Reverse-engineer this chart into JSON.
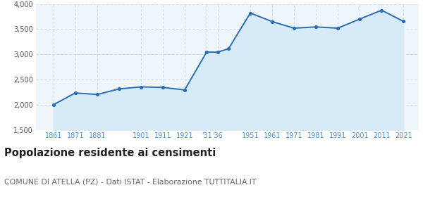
{
  "x_positions": [
    1861,
    1871,
    1881,
    1891,
    1901,
    1911,
    1921,
    1931,
    1936,
    1941,
    1951,
    1961,
    1971,
    1981,
    1991,
    2001,
    2011,
    2021
  ],
  "y_values": [
    2002,
    2235,
    2205,
    2315,
    2355,
    2345,
    2295,
    3045,
    3045,
    3110,
    3820,
    3650,
    3520,
    3545,
    3520,
    3700,
    3875,
    3655
  ],
  "xtick_positions": [
    1861,
    1871,
    1881,
    1901,
    1911,
    1921,
    1931,
    1936,
    1951,
    1961,
    1971,
    1981,
    1991,
    2001,
    2011,
    2021
  ],
  "xtick_labels": [
    "1861",
    "1871",
    "1881",
    "1901",
    "1911",
    "1921",
    "'31",
    "'36",
    "1951",
    "1961",
    "1971",
    "1981",
    "1991",
    "2001",
    "2011",
    "2021"
  ],
  "ylim": [
    1500,
    4000
  ],
  "yticks": [
    1500,
    2000,
    2500,
    3000,
    3500,
    4000
  ],
  "ytick_labels": [
    "1,500",
    "2,000",
    "2,500",
    "3,000",
    "3,500",
    "4,000"
  ],
  "line_color": "#2b6db5",
  "fill_color": "#d6eaf8",
  "marker_color": "#2b6db5",
  "grid_color": "#c8d8e8",
  "bg_color": "#eef5fb",
  "fig_bg": "#ffffff",
  "title": "Popolazione residente ai censimenti",
  "subtitle": "COMUNE DI ATELLA (PZ) - Dati ISTAT - Elaborazione TUTTITALIA.IT",
  "title_fontsize": 10.5,
  "subtitle_fontsize": 7.8,
  "xtick_color": "#4a90d9",
  "xtick_fontsize": 7,
  "ytick_fontsize": 7,
  "xlim": [
    1853,
    2028
  ]
}
